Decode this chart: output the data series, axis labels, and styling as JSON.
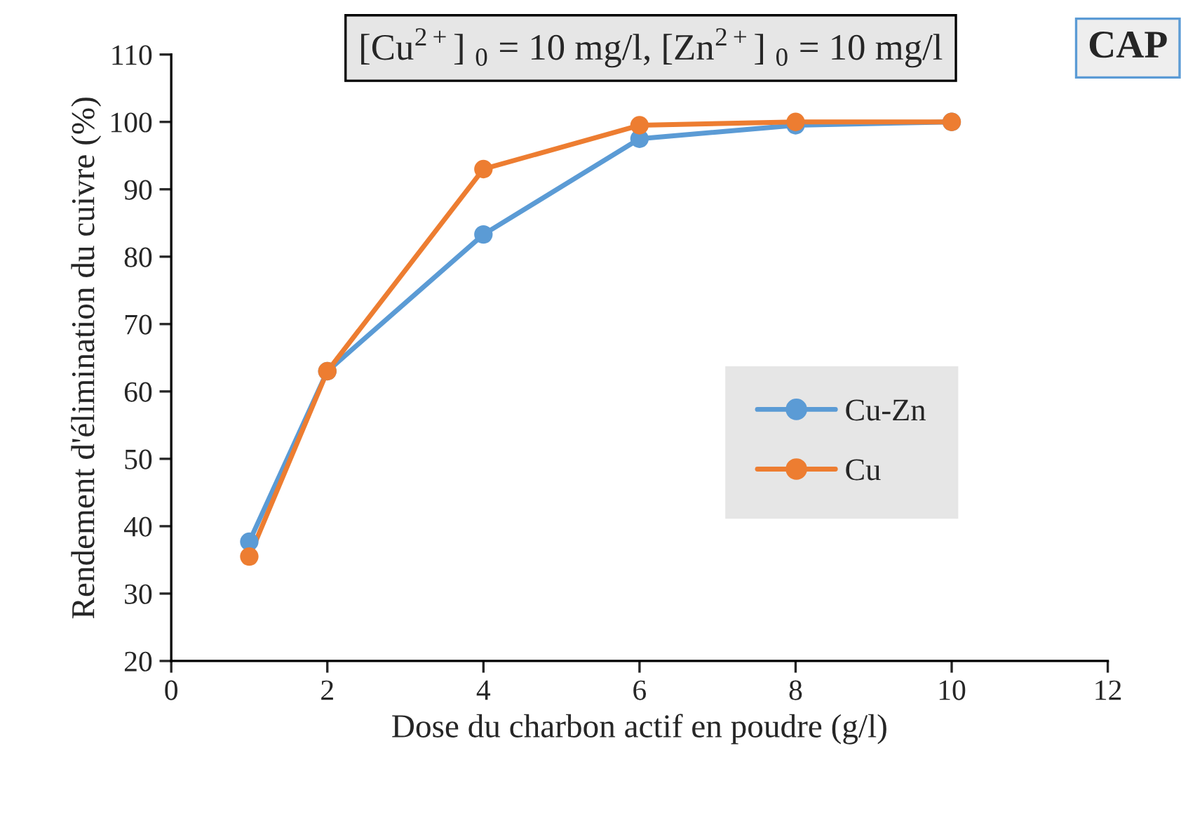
{
  "chart_data": {
    "type": "line",
    "title": "[Cu$^{2+}$] $_{0}$ = 10 mg/l, [Zn$^{2+}$] $_{0}$ = 10 mg/l",
    "annotations": [
      "CAP"
    ],
    "xlabel": "Dose du charbon actif en poudre (g/l)",
    "ylabel": "Rendement d'élimination du cuivre (%)",
    "x": [
      1,
      2,
      4,
      6,
      8,
      10
    ],
    "series": [
      {
        "name": "Cu-Zn",
        "color": "#5b9bd5",
        "values": [
          37.7,
          63,
          83.3,
          97.5,
          99.5,
          100
        ]
      },
      {
        "name": "Cu",
        "color": "#ed7d31",
        "values": [
          35.5,
          63,
          93,
          99.5,
          100,
          100
        ]
      }
    ],
    "xlim": [
      0,
      12
    ],
    "xticks": [
      0,
      2,
      4,
      6,
      8,
      10,
      12
    ],
    "ylim": [
      20,
      110
    ],
    "yticks": [
      20,
      30,
      40,
      50,
      60,
      70,
      80,
      90,
      100,
      110
    ],
    "grid": false,
    "legend": "right",
    "marker": "circle",
    "line_style": "solid"
  }
}
